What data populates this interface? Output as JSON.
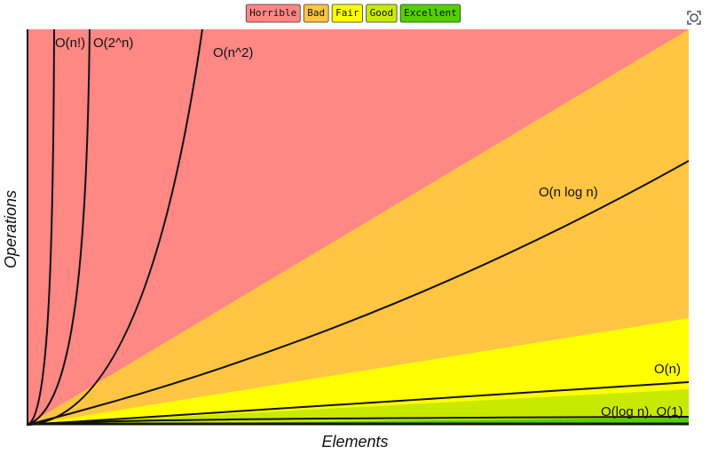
{
  "legend": [
    {
      "label": "Horrible",
      "color": "#ff8784"
    },
    {
      "label": "Bad",
      "color": "#ffc543"
    },
    {
      "label": "Fair",
      "color": "#ffff00"
    },
    {
      "label": "Good",
      "color": "#c8ea00"
    },
    {
      "label": "Excellent",
      "color": "#53d000"
    }
  ],
  "curves": {
    "factorial": "O(n!)",
    "exponential": "O(2^n)",
    "quadratic": "O(n^2)",
    "linearithmic": "O(n log n)",
    "linear": "O(n)",
    "log_constant": "O(log n), O(1)"
  },
  "x_axis_label": "Elements",
  "y_axis_label": "Operations"
}
